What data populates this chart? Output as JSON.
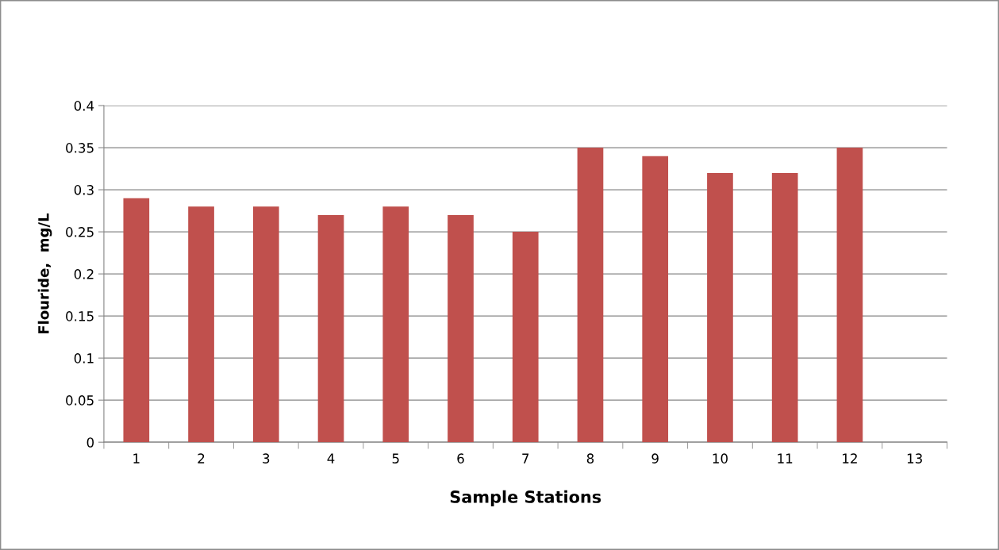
{
  "chart_data": {
    "type": "bar",
    "xlabel": "Sample Stations",
    "ylabel": "Flouride,  mg/L",
    "categories": [
      "1",
      "2",
      "3",
      "4",
      "5",
      "6",
      "7",
      "8",
      "9",
      "10",
      "11",
      "12",
      "13"
    ],
    "values": [
      0.29,
      0.28,
      0.28,
      0.27,
      0.28,
      0.27,
      0.25,
      0.35,
      0.34,
      0.32,
      0.32,
      0.35,
      null
    ],
    "color": "#c0504d",
    "ylim": [
      0,
      0.4
    ],
    "yticks": [
      0,
      0.05,
      0.1,
      0.15,
      0.2,
      0.25,
      0.3,
      0.35,
      0.4
    ],
    "grid": "y",
    "legend": false
  }
}
